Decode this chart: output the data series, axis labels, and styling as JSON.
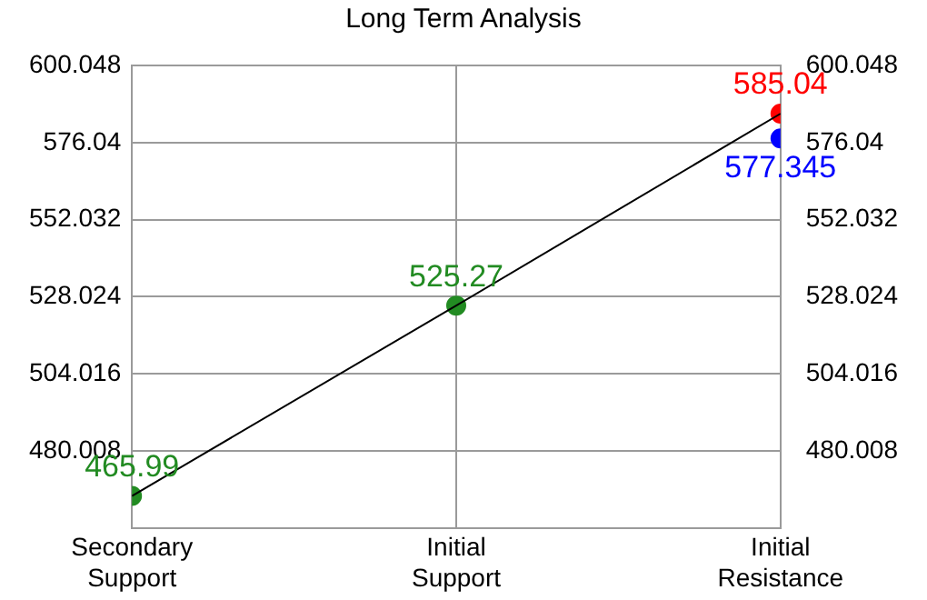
{
  "chart_data": {
    "type": "line",
    "title": "Long Term Analysis",
    "categories": [
      "Secondary Support",
      "Initial Support",
      "Initial Resistance"
    ],
    "ylim": [
      456,
      600.048
    ],
    "yticks": [
      480.008,
      504.016,
      528.024,
      552.032,
      576.04,
      600.048
    ],
    "y2lim": [
      456,
      600.048
    ],
    "y2ticks": [
      480.008,
      504.016,
      528.024,
      552.032,
      576.04,
      600.048
    ],
    "series": [
      {
        "color": "#000000",
        "values": [
          465.99,
          525.27,
          585.04
        ],
        "marker": "none"
      },
      {
        "type": "scatter",
        "colors": [
          "#228b22",
          "#228b22",
          "#0000ff",
          "#ff0000"
        ],
        "x": [
          "Secondary Support",
          "Initial Support",
          "Initial Resistance",
          "Initial Resistance"
        ],
        "values": [
          465.99,
          525.27,
          577.345,
          585.04
        ],
        "value_labels": [
          "465.99",
          "525.27",
          "577.345",
          "585.04"
        ],
        "marker": "circle"
      }
    ],
    "grid": true,
    "legend": false
  }
}
